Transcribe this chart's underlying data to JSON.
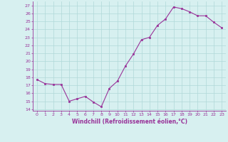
{
  "x": [
    0,
    1,
    2,
    3,
    4,
    5,
    6,
    7,
    8,
    9,
    10,
    11,
    12,
    13,
    14,
    15,
    16,
    17,
    18,
    19,
    20,
    21,
    22,
    23
  ],
  "y": [
    17.7,
    17.2,
    17.1,
    17.1,
    15.0,
    15.3,
    15.6,
    14.9,
    14.3,
    16.6,
    17.5,
    19.4,
    20.9,
    22.7,
    23.0,
    24.5,
    25.3,
    26.8,
    26.6,
    26.2,
    25.7,
    25.7,
    24.9,
    24.2
  ],
  "line_color": "#993399",
  "marker": "s",
  "marker_size": 1.5,
  "bg_color": "#d7f0f0",
  "grid_color": "#b0d8d8",
  "xlabel": "Windchill (Refroidissement éolien,°C)",
  "xlabel_color": "#993399",
  "ylabel_ticks": [
    14,
    15,
    16,
    17,
    18,
    19,
    20,
    21,
    22,
    23,
    24,
    25,
    26,
    27
  ],
  "xlim": [
    -0.5,
    23.5
  ],
  "ylim": [
    13.8,
    27.5
  ],
  "xtick_labels": [
    "0",
    "1",
    "2",
    "3",
    "4",
    "5",
    "6",
    "7",
    "8",
    "9",
    "10",
    "11",
    "12",
    "13",
    "14",
    "15",
    "16",
    "17",
    "18",
    "19",
    "20",
    "21",
    "22",
    "23"
  ]
}
